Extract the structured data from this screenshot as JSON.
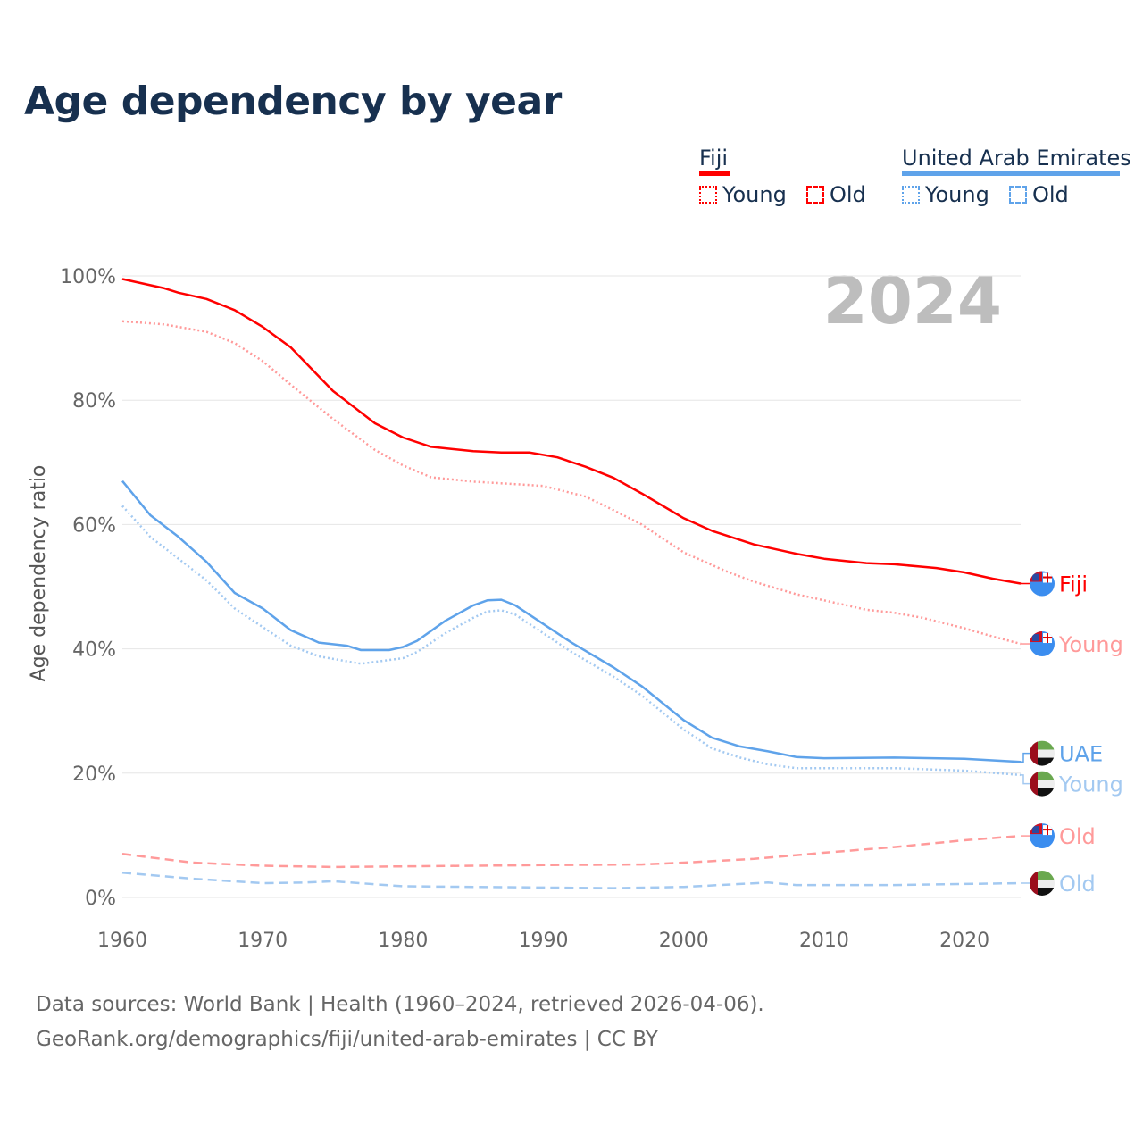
{
  "title": "Age dependency by year",
  "legend": {
    "groups": [
      {
        "name": "Fiji",
        "color": "#ff0000",
        "young_label": "Young",
        "old_label": "Old"
      },
      {
        "name": "United Arab Emirates",
        "color": "#5fa3ea",
        "young_label": "Young",
        "old_label": "Old"
      }
    ]
  },
  "source": {
    "line1": "Data sources: World Bank | Health (1960–2024, retrieved 2026-04-06).",
    "line2": "GeoRank.org/demographics/fiji/united-arab-emirates | CC BY"
  },
  "chart_data": {
    "type": "line",
    "title": "Age dependency by year",
    "xlabel": "",
    "ylabel": "Age dependency ratio",
    "year_overlay": "2024",
    "xlim": [
      1960,
      2024
    ],
    "ylim": [
      0,
      100
    ],
    "xticks": [
      "1960",
      "1970",
      "1980",
      "1990",
      "2000",
      "2010",
      "2020"
    ],
    "yticks": [
      "0%",
      "20%",
      "40%",
      "60%",
      "80%",
      "100%"
    ],
    "grid": true,
    "series": [
      {
        "name": "Fiji",
        "end_label": "Fiji",
        "country": "fiji",
        "color": "#ff0000",
        "style": "solid",
        "points": [
          [
            1960,
            99.5
          ],
          [
            1963,
            98
          ],
          [
            1964,
            97.3
          ],
          [
            1966,
            96.3
          ],
          [
            1968,
            94.5
          ],
          [
            1970,
            91.8
          ],
          [
            1972,
            88.5
          ],
          [
            1975,
            81.5
          ],
          [
            1978,
            76.3
          ],
          [
            1980,
            74
          ],
          [
            1982,
            72.5
          ],
          [
            1985,
            71.8
          ],
          [
            1987,
            71.6
          ],
          [
            1989,
            71.6
          ],
          [
            1991,
            70.8
          ],
          [
            1993,
            69.3
          ],
          [
            1995,
            67.5
          ],
          [
            1997,
            65
          ],
          [
            2000,
            61
          ],
          [
            2002,
            59
          ],
          [
            2005,
            56.8
          ],
          [
            2008,
            55.3
          ],
          [
            2010,
            54.5
          ],
          [
            2013,
            53.8
          ],
          [
            2015,
            53.6
          ],
          [
            2018,
            53
          ],
          [
            2020,
            52.3
          ],
          [
            2022,
            51.3
          ],
          [
            2024,
            50.5
          ]
        ]
      },
      {
        "name": "Fiji Young",
        "end_label": "Young",
        "country": "fiji",
        "color": "#ff9a9a",
        "style": "dotted",
        "points": [
          [
            1960,
            92.7
          ],
          [
            1963,
            92.2
          ],
          [
            1966,
            91
          ],
          [
            1968,
            89.2
          ],
          [
            1970,
            86.3
          ],
          [
            1972,
            82.5
          ],
          [
            1975,
            77
          ],
          [
            1978,
            72
          ],
          [
            1980,
            69.5
          ],
          [
            1982,
            67.6
          ],
          [
            1985,
            66.9
          ],
          [
            1988,
            66.5
          ],
          [
            1990,
            66.2
          ],
          [
            1993,
            64.5
          ],
          [
            1995,
            62.3
          ],
          [
            1997,
            60
          ],
          [
            2000,
            55.5
          ],
          [
            2003,
            52.5
          ],
          [
            2005,
            50.8
          ],
          [
            2008,
            48.8
          ],
          [
            2010,
            47.8
          ],
          [
            2013,
            46.3
          ],
          [
            2015,
            45.8
          ],
          [
            2017,
            45
          ],
          [
            2020,
            43.3
          ],
          [
            2022,
            42
          ],
          [
            2024,
            40.8
          ]
        ]
      },
      {
        "name": "United Arab Emirates",
        "end_label": "UAE",
        "country": "uae",
        "color": "#5fa3ea",
        "style": "solid",
        "points": [
          [
            1960,
            67
          ],
          [
            1962,
            61.5
          ],
          [
            1964,
            58
          ],
          [
            1966,
            54
          ],
          [
            1968,
            49
          ],
          [
            1970,
            46.5
          ],
          [
            1972,
            43
          ],
          [
            1974,
            41
          ],
          [
            1976,
            40.5
          ],
          [
            1977,
            39.8
          ],
          [
            1979,
            39.8
          ],
          [
            1980,
            40.3
          ],
          [
            1981,
            41.3
          ],
          [
            1983,
            44.5
          ],
          [
            1985,
            47
          ],
          [
            1986,
            47.8
          ],
          [
            1987,
            47.9
          ],
          [
            1988,
            47
          ],
          [
            1990,
            44
          ],
          [
            1992,
            41
          ],
          [
            1995,
            37
          ],
          [
            1997,
            34
          ],
          [
            2000,
            28.5
          ],
          [
            2002,
            25.7
          ],
          [
            2004,
            24.3
          ],
          [
            2006,
            23.5
          ],
          [
            2008,
            22.6
          ],
          [
            2010,
            22.4
          ],
          [
            2015,
            22.5
          ],
          [
            2020,
            22.3
          ],
          [
            2024,
            21.8
          ]
        ]
      },
      {
        "name": "United Arab Emirates Young",
        "end_label": "Young",
        "country": "uae",
        "color": "#a3c9f1",
        "style": "dotted",
        "points": [
          [
            1960,
            63
          ],
          [
            1962,
            58
          ],
          [
            1964,
            54.5
          ],
          [
            1966,
            51
          ],
          [
            1968,
            46.5
          ],
          [
            1970,
            43.5
          ],
          [
            1972,
            40.5
          ],
          [
            1974,
            38.8
          ],
          [
            1977,
            37.6
          ],
          [
            1980,
            38.5
          ],
          [
            1981,
            39.5
          ],
          [
            1983,
            42.5
          ],
          [
            1985,
            45
          ],
          [
            1986,
            46
          ],
          [
            1987,
            46.2
          ],
          [
            1988,
            45.5
          ],
          [
            1990,
            42.5
          ],
          [
            1992,
            39.5
          ],
          [
            1995,
            35.5
          ],
          [
            1997,
            32.5
          ],
          [
            2000,
            27
          ],
          [
            2002,
            24
          ],
          [
            2004,
            22.5
          ],
          [
            2006,
            21.4
          ],
          [
            2008,
            20.8
          ],
          [
            2010,
            20.8
          ],
          [
            2015,
            20.8
          ],
          [
            2020,
            20.4
          ],
          [
            2024,
            19.7
          ]
        ]
      },
      {
        "name": "Fiji Old",
        "end_label": "Old",
        "country": "fiji",
        "color": "#ff9a9a",
        "style": "dashed",
        "points": [
          [
            1960,
            7
          ],
          [
            1965,
            5.6
          ],
          [
            1970,
            5.1
          ],
          [
            1975,
            4.9
          ],
          [
            1980,
            5
          ],
          [
            1990,
            5.2
          ],
          [
            1997,
            5.3
          ],
          [
            2000,
            5.6
          ],
          [
            2005,
            6.2
          ],
          [
            2010,
            7.2
          ],
          [
            2015,
            8.1
          ],
          [
            2020,
            9.2
          ],
          [
            2024,
            9.9
          ]
        ]
      },
      {
        "name": "United Arab Emirates Old",
        "end_label": "Old",
        "country": "uae",
        "color": "#a3c9f1",
        "style": "dashed",
        "points": [
          [
            1960,
            4
          ],
          [
            1965,
            3
          ],
          [
            1970,
            2.3
          ],
          [
            1973,
            2.4
          ],
          [
            1975,
            2.6
          ],
          [
            1980,
            1.8
          ],
          [
            1990,
            1.6
          ],
          [
            1995,
            1.5
          ],
          [
            2000,
            1.7
          ],
          [
            2006,
            2.4
          ],
          [
            2008,
            2
          ],
          [
            2015,
            2
          ],
          [
            2024,
            2.3
          ]
        ]
      }
    ]
  }
}
